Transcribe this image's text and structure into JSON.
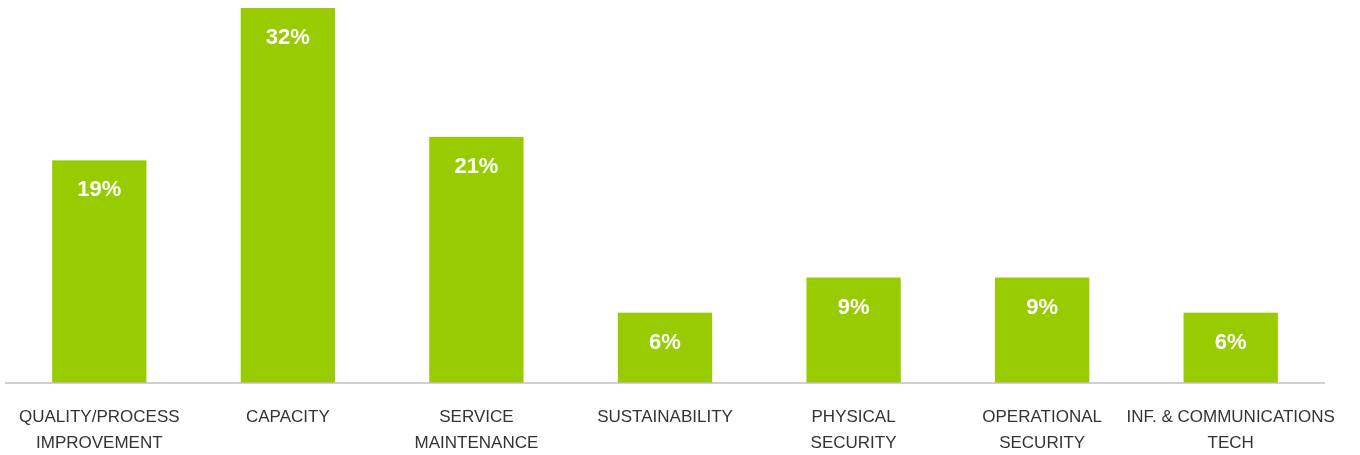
{
  "chart_data": {
    "type": "bar",
    "categories": [
      "QUALITY/PROCESS\nIMPROVEMENT",
      "CAPACITY",
      "SERVICE\nMAINTENANCE",
      "SUSTAINABILITY",
      "PHYSICAL\nSECURITY",
      "OPERATIONAL\nSECURITY",
      "INF. & COMMUNICATIONS\nTECH"
    ],
    "values": [
      19,
      32,
      21,
      6,
      9,
      9,
      6
    ],
    "value_labels": [
      "19%",
      "32%",
      "21%",
      "6%",
      "9%",
      "9%",
      "6%"
    ],
    "color": "#99cc00"
  }
}
